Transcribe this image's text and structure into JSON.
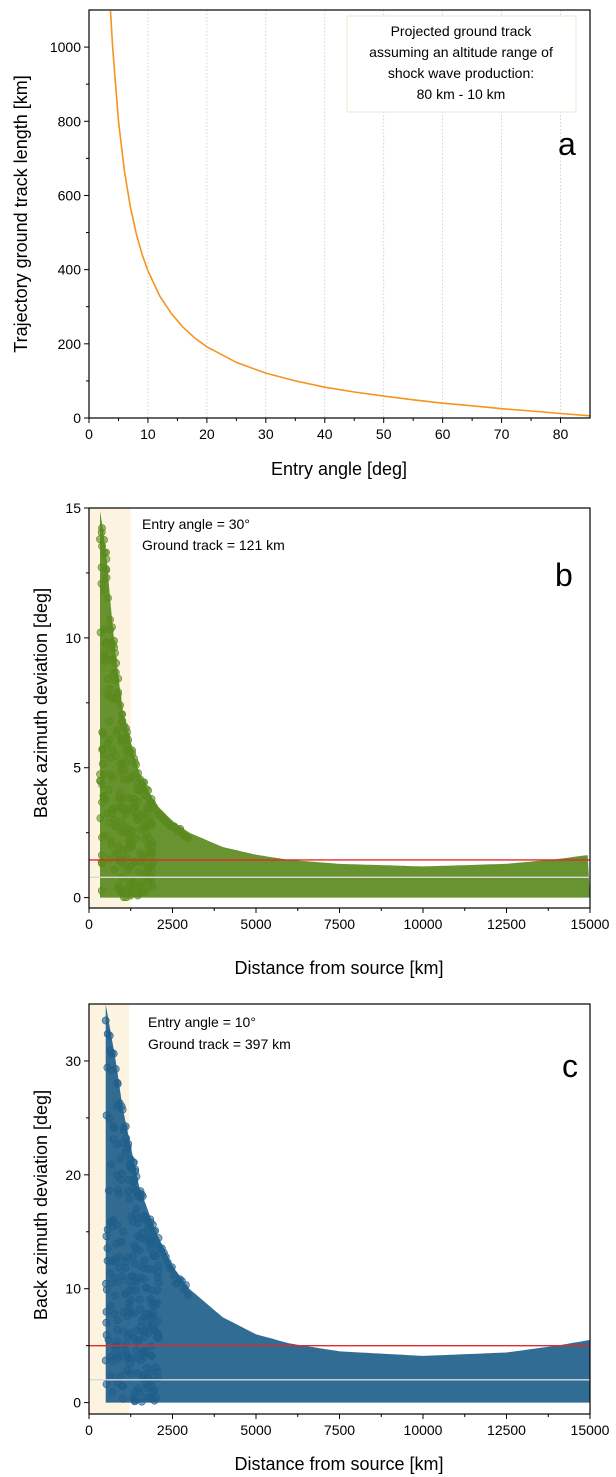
{
  "chart_data": [
    {
      "type": "line",
      "panel_label": "a",
      "xlabel": "Entry angle [deg]",
      "ylabel": "Trajectory ground track length [km]",
      "xlim": [
        0,
        85
      ],
      "ylim": [
        0,
        1100
      ],
      "xticks": [
        0,
        10,
        20,
        30,
        40,
        50,
        60,
        70,
        80
      ],
      "yticks": [
        0,
        200,
        400,
        600,
        800,
        1000
      ],
      "grid": "vertical dotted",
      "legend_text": [
        "Projected ground track",
        "assuming an altitude range of",
        "shock wave production:",
        "80 km - 10 km"
      ],
      "series": [
        {
          "color": "#f7931e",
          "x": [
            3.65,
            4,
            5,
            6,
            7,
            8,
            9,
            10,
            12,
            14,
            16,
            18,
            20,
            25,
            30,
            35,
            40,
            45,
            50,
            55,
            60,
            65,
            70,
            75,
            80,
            85
          ],
          "y": [
            1097,
            1001,
            800,
            666,
            570,
            498,
            442,
            397,
            329,
            281,
            244,
            215,
            192,
            150,
            121,
            100,
            83,
            70,
            59,
            49,
            40,
            33,
            25,
            19,
            12,
            6
          ]
        }
      ]
    },
    {
      "type": "scatter",
      "panel_label": "b",
      "xlabel": "Distance from source [km]",
      "ylabel": "Back azimuth deviation [deg]",
      "xlim": [
        0,
        15000
      ],
      "ylim": [
        -0.4,
        15
      ],
      "xticks": [
        0,
        2500,
        5000,
        7500,
        10000,
        12500,
        15000
      ],
      "yticks": [
        0,
        5,
        10,
        15
      ],
      "shaded_region_x": [
        0,
        1250
      ],
      "annotation": [
        "Entry angle = 30°",
        "Ground track = 121 km"
      ],
      "color": "#5a8a1e",
      "envelope_max": [
        [
          330,
          14.9
        ],
        [
          500,
          13.5
        ],
        [
          700,
          10.5
        ],
        [
          1000,
          7.2
        ],
        [
          1500,
          4.8
        ],
        [
          2000,
          3.6
        ],
        [
          2500,
          2.95
        ],
        [
          3000,
          2.5
        ],
        [
          4000,
          1.95
        ],
        [
          5000,
          1.65
        ],
        [
          6000,
          1.45
        ],
        [
          7500,
          1.3
        ],
        [
          10000,
          1.2
        ],
        [
          12500,
          1.3
        ],
        [
          14000,
          1.48
        ],
        [
          15000,
          1.65
        ]
      ],
      "hlines": [
        {
          "y": 1.45,
          "color": "#e32a2a"
        },
        {
          "y": 0.78,
          "color": "#d9d9d9"
        }
      ]
    },
    {
      "type": "scatter",
      "panel_label": "c",
      "xlabel": "Distance from source [km]",
      "ylabel": "Back azimuth deviation [deg]",
      "xlim": [
        0,
        15000
      ],
      "ylim": [
        -1,
        35
      ],
      "xticks": [
        0,
        2500,
        5000,
        7500,
        10000,
        12500,
        15000
      ],
      "yticks": [
        0,
        10,
        20,
        30
      ],
      "shaded_region_x": [
        0,
        1200
      ],
      "annotation": [
        "Entry angle = 10°",
        "Ground track = 397 km"
      ],
      "color": "#1f5f8b",
      "envelope_max": [
        [
          500,
          35
        ],
        [
          800,
          30
        ],
        [
          1000,
          26
        ],
        [
          1500,
          19
        ],
        [
          2000,
          15
        ],
        [
          2500,
          12
        ],
        [
          3000,
          10
        ],
        [
          4000,
          7.5
        ],
        [
          5000,
          6
        ],
        [
          6000,
          5.2
        ],
        [
          7500,
          4.5
        ],
        [
          10000,
          4.1
        ],
        [
          12500,
          4.4
        ],
        [
          14000,
          5
        ],
        [
          15000,
          5.5
        ]
      ],
      "hlines": [
        {
          "y": 5,
          "color": "#e32a2a"
        },
        {
          "y": 2,
          "color": "#d9d9d9"
        }
      ]
    }
  ]
}
